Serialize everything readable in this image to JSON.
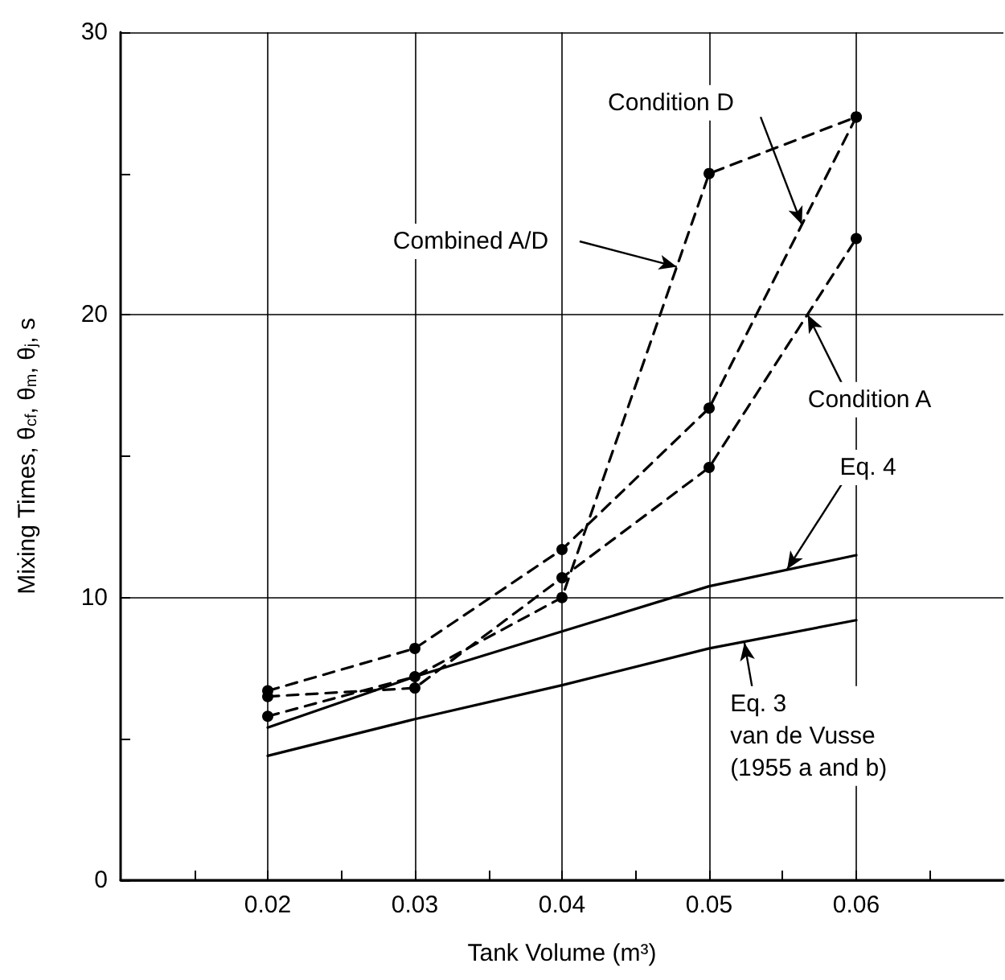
{
  "chart_data": {
    "type": "line",
    "xlabel": "Tank Volume (m³)",
    "ylabel": "Mixing Times, θ$_{cf}$, θ$_{m}$, θ$_{j}$, s",
    "xlim": [
      0.01,
      0.07
    ],
    "xticks": [
      {
        "value": 0.015,
        "label": null
      },
      0.02,
      {
        "value": 0.025,
        "label": null
      },
      0.03,
      {
        "value": 0.035,
        "label": null
      },
      0.04,
      {
        "value": 0.045,
        "label": null
      },
      0.05,
      {
        "value": 0.055,
        "label": null
      },
      0.06,
      {
        "value": 0.065,
        "label": null
      }
    ],
    "ylim": [
      0,
      30
    ],
    "yticks": [
      0,
      {
        "value": 5,
        "label": null
      },
      10,
      {
        "value": 15,
        "label": null
      },
      20,
      {
        "value": 25,
        "label": null
      },
      30
    ],
    "grid": true,
    "x": [
      0.02,
      0.03,
      0.04,
      0.05,
      0.06
    ],
    "series": [
      {
        "color": "#000000",
        "marker": "circle",
        "line_style": "dashed",
        "values": [
          6.7,
          8.2,
          11.7,
          16.7,
          27.0
        ]
      },
      {
        "color": "#000000",
        "marker": "circle",
        "line_style": "dashed",
        "values": [
          6.5,
          6.8,
          10.7,
          14.6,
          22.7
        ]
      },
      {
        "color": "#000000",
        "marker": "circle",
        "line_style": "dashed",
        "values": [
          5.8,
          7.2,
          10.0,
          25.0,
          27.0
        ]
      },
      {
        "color": "#000000",
        "marker": "none",
        "line_style": "solid",
        "values": [
          5.4,
          7.2,
          8.8,
          10.4,
          11.5
        ]
      },
      {
        "color": "#000000",
        "marker": "none",
        "line_style": "solid",
        "values": [
          4.4,
          5.7,
          6.9,
          8.2,
          9.2
        ]
      }
    ],
    "annotations": [
      {
        "text": "Condition D",
        "x": 0.0563,
        "y": 23.2
      },
      {
        "text": "Combined A/D",
        "x": 0.0478,
        "y": 21.7
      },
      {
        "text": "Condition A",
        "x": 0.0567,
        "y": 20.0
      },
      {
        "text": "Eq. 4",
        "x": 0.0553,
        "y": 11.0
      },
      {
        "text": "Eq. 3\nvan de Vusse\n(1955 a and b)",
        "x": 0.0524,
        "y": 8.4
      }
    ]
  }
}
